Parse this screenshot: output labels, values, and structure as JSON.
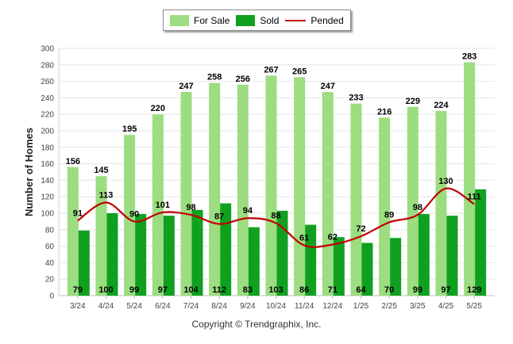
{
  "colors": {
    "for_sale": "#9bdd80",
    "sold": "#10a020",
    "pended": "#c00000",
    "grid": "#e6e6e6"
  },
  "legend": {
    "for_sale": "For Sale",
    "sold": "Sold",
    "pended": "Pended"
  },
  "copyright": "Copyright © Trendgraphix, Inc.",
  "chart_data": {
    "type": "bar",
    "title": "",
    "xlabel": "",
    "ylabel": "Number of Homes",
    "ylim": [
      0,
      300
    ],
    "yticks": [
      0,
      20,
      40,
      60,
      80,
      100,
      120,
      140,
      160,
      180,
      200,
      220,
      240,
      260,
      280,
      300
    ],
    "grid": true,
    "legend_position": "top-center",
    "categories": [
      "3/24",
      "4/24",
      "5/24",
      "6/24",
      "7/24",
      "8/24",
      "9/24",
      "10/24",
      "11/24",
      "12/24",
      "1/25",
      "2/25",
      "3/25",
      "4/25",
      "5/25"
    ],
    "series": [
      {
        "name": "For Sale",
        "type": "bar",
        "values": [
          156,
          145,
          195,
          220,
          247,
          258,
          256,
          267,
          265,
          247,
          233,
          216,
          229,
          224,
          283
        ]
      },
      {
        "name": "Sold",
        "type": "bar",
        "values": [
          79,
          100,
          99,
          97,
          104,
          112,
          83,
          103,
          86,
          71,
          64,
          70,
          99,
          97,
          129
        ]
      },
      {
        "name": "Pended",
        "type": "line",
        "values": [
          91,
          113,
          90,
          101,
          98,
          87,
          94,
          88,
          61,
          62,
          72,
          89,
          98,
          130,
          111
        ]
      }
    ]
  }
}
